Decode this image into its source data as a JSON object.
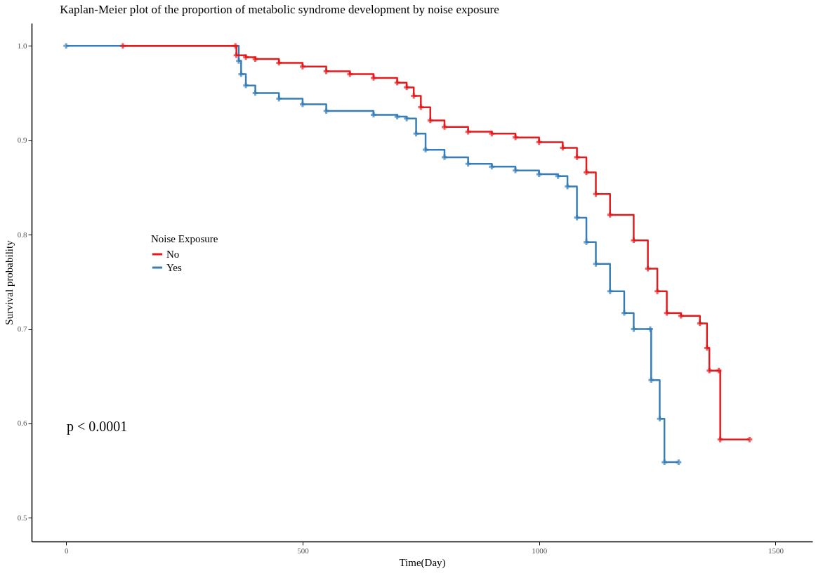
{
  "chart_data": {
    "type": "step",
    "title": "Kaplan-Meier plot of the proportion of metabolic syndrome development by noise exposure",
    "xlabel": "Time(Day)",
    "ylabel": "Survival probability",
    "legend_title": "Noise Exposure",
    "legend": "left",
    "marker": "cross",
    "grid": false,
    "annotations": [
      "p < 0.0001"
    ],
    "xlim": [
      -73,
      1578
    ],
    "xticks": [
      0,
      500,
      1000,
      1500
    ],
    "ylim": [
      0.475,
      1.024
    ],
    "yticks": [
      0.5,
      0.6,
      0.7,
      0.8,
      0.9,
      {
        "value": 1,
        "label": "1.0"
      }
    ],
    "series": [
      {
        "name": "No",
        "color": "#e41a1c",
        "x": [
          120,
          358,
          360,
          380,
          400,
          450,
          500,
          550,
          600,
          650,
          700,
          720,
          735,
          750,
          770,
          800,
          850,
          900,
          950,
          1000,
          1050,
          1080,
          1100,
          1120,
          1150,
          1200,
          1230,
          1250,
          1270,
          1300,
          1340,
          1355,
          1360,
          1380,
          1383,
          1445
        ],
        "values": [
          1,
          1,
          0.99,
          0.988,
          0.986,
          0.982,
          0.978,
          0.973,
          0.97,
          0.966,
          0.961,
          0.956,
          0.947,
          0.935,
          0.921,
          0.914,
          0.909,
          0.907,
          0.903,
          0.898,
          0.892,
          0.882,
          0.866,
          0.843,
          0.821,
          0.794,
          0.764,
          0.74,
          0.717,
          0.714,
          0.706,
          0.68,
          0.656,
          0.656,
          0.583,
          0.583
        ]
      },
      {
        "name": "Yes",
        "color": "#377eb8",
        "x": [
          0,
          365,
          370,
          380,
          400,
          450,
          500,
          550,
          650,
          700,
          720,
          740,
          760,
          800,
          850,
          900,
          950,
          1000,
          1040,
          1060,
          1080,
          1100,
          1120,
          1150,
          1180,
          1200,
          1235,
          1237,
          1255,
          1265,
          1295
        ],
        "values": [
          1,
          0.984,
          0.97,
          0.958,
          0.95,
          0.944,
          0.938,
          0.931,
          0.927,
          0.925,
          0.923,
          0.907,
          0.89,
          0.882,
          0.875,
          0.872,
          0.868,
          0.864,
          0.862,
          0.851,
          0.818,
          0.792,
          0.769,
          0.74,
          0.717,
          0.7,
          0.7,
          0.646,
          0.605,
          0.559,
          0.559
        ]
      }
    ]
  }
}
